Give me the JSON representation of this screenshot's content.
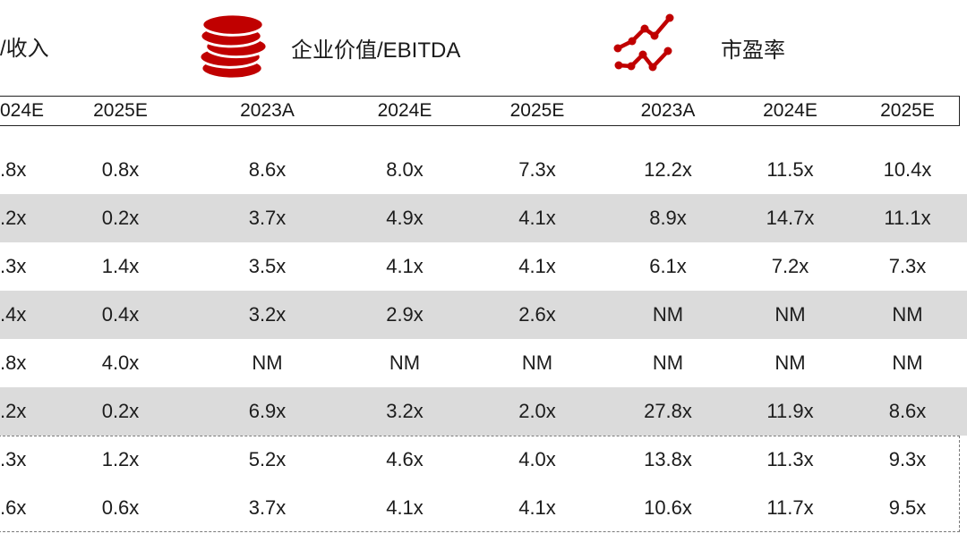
{
  "legend": {
    "revenue_label": "/收入",
    "ebitda_label": "企业价值/EBITDA",
    "pe_label": "市盈率",
    "coin_icon": "coin-stack-icon",
    "line_icon": "line-chart-icon"
  },
  "colors": {
    "accent_red": "#C00000",
    "row_shaded": "#DBDBDB",
    "header_border": "#222222",
    "dashed_border": "#7A7A7A",
    "text": "#1C1C1C"
  },
  "table": {
    "headers": [
      "024E",
      "2025E",
      "2023A",
      "2024E",
      "2025E",
      "2023A",
      "2024E",
      "2025E"
    ],
    "rows": [
      {
        "shaded": false,
        "cells": [
          ".8x",
          "0.8x",
          "8.6x",
          "8.0x",
          "7.3x",
          "12.2x",
          "11.5x",
          "10.4x"
        ]
      },
      {
        "shaded": true,
        "cells": [
          ".2x",
          "0.2x",
          "3.7x",
          "4.9x",
          "4.1x",
          "8.9x",
          "14.7x",
          "11.1x"
        ]
      },
      {
        "shaded": false,
        "cells": [
          ".3x",
          "1.4x",
          "3.5x",
          "4.1x",
          "4.1x",
          "6.1x",
          "7.2x",
          "7.3x"
        ]
      },
      {
        "shaded": true,
        "cells": [
          ".4x",
          "0.4x",
          "3.2x",
          "2.9x",
          "2.6x",
          "NM",
          "NM",
          "NM"
        ]
      },
      {
        "shaded": false,
        "cells": [
          ".8x",
          "4.0x",
          "NM",
          "NM",
          "NM",
          "NM",
          "NM",
          "NM"
        ]
      },
      {
        "shaded": true,
        "cells": [
          ".2x",
          "0.2x",
          "6.9x",
          "3.2x",
          "2.0x",
          "27.8x",
          "11.9x",
          "8.6x"
        ]
      },
      {
        "shaded": false,
        "dashed_box": true,
        "cells": [
          ".3x",
          "1.2x",
          "5.2x",
          "4.6x",
          "4.0x",
          "13.8x",
          "11.3x",
          "9.3x"
        ]
      },
      {
        "shaded": false,
        "dashed_box": true,
        "cells": [
          ".6x",
          "0.6x",
          "3.7x",
          "4.1x",
          "4.1x",
          "10.6x",
          "11.7x",
          "9.5x"
        ]
      }
    ]
  },
  "chart_data": {
    "type": "table",
    "group_labels": [
      "/收入",
      "企业价值/EBITDA",
      "市盈率"
    ],
    "columns": [
      "024E",
      "2025E",
      "2023A",
      "2024E",
      "2025E",
      "2023A",
      "2024E",
      "2025E"
    ],
    "rows": [
      [
        ".8x",
        "0.8x",
        "8.6x",
        "8.0x",
        "7.3x",
        "12.2x",
        "11.5x",
        "10.4x"
      ],
      [
        ".2x",
        "0.2x",
        "3.7x",
        "4.9x",
        "4.1x",
        "8.9x",
        "14.7x",
        "11.1x"
      ],
      [
        ".3x",
        "1.4x",
        "3.5x",
        "4.1x",
        "4.1x",
        "6.1x",
        "7.2x",
        "7.3x"
      ],
      [
        ".4x",
        "0.4x",
        "3.2x",
        "2.9x",
        "2.6x",
        "NM",
        "NM",
        "NM"
      ],
      [
        ".8x",
        "4.0x",
        "NM",
        "NM",
        "NM",
        "NM",
        "NM",
        "NM"
      ],
      [
        ".2x",
        "0.2x",
        "6.9x",
        "3.2x",
        "2.0x",
        "27.8x",
        "11.9x",
        "8.6x"
      ],
      [
        ".3x",
        "1.2x",
        "5.2x",
        "4.6x",
        "4.0x",
        "13.8x",
        "11.3x",
        "9.3x"
      ],
      [
        ".6x",
        "0.6x",
        "3.7x",
        "4.1x",
        "4.1x",
        "10.6x",
        "11.7x",
        "9.5x"
      ]
    ],
    "notes": "alternating gray shading rows 2/4/6; last two rows enclosed in dashed box; left edge of table cropped"
  }
}
